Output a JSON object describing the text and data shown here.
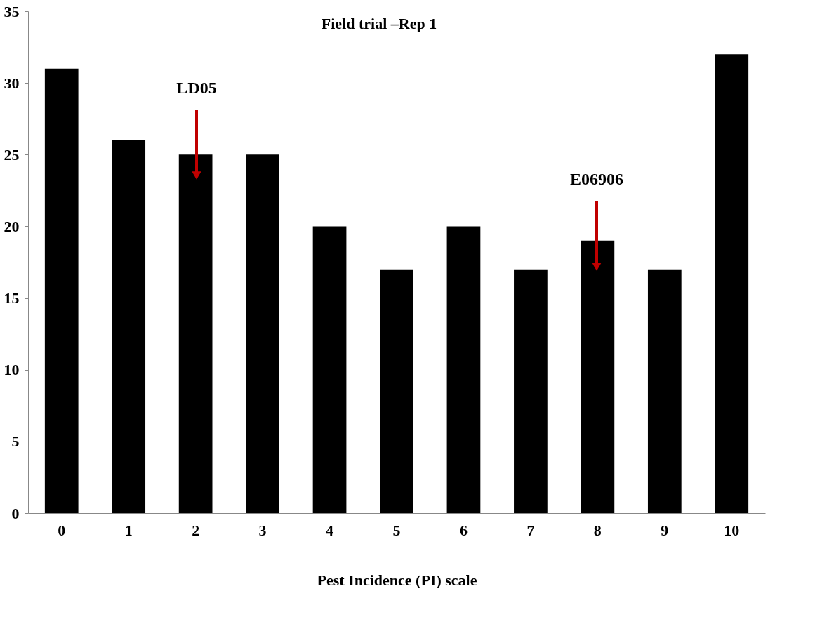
{
  "chart_data": {
    "type": "bar",
    "title": "Field trial –Rep 1",
    "xlabel": "Pest Incidence (PI) scale",
    "categories": [
      "0",
      "1",
      "2",
      "3",
      "4",
      "5",
      "6",
      "7",
      "8",
      "9",
      "10"
    ],
    "values": [
      31,
      26,
      25,
      25,
      20,
      17,
      20,
      17,
      19,
      17,
      32
    ],
    "color": "#000000",
    "ylim": [
      0,
      35
    ],
    "yticks": [
      0,
      5,
      10,
      15,
      20,
      25,
      30,
      35
    ],
    "grid": false,
    "annotations": [
      "LD05",
      "E06906"
    ]
  }
}
